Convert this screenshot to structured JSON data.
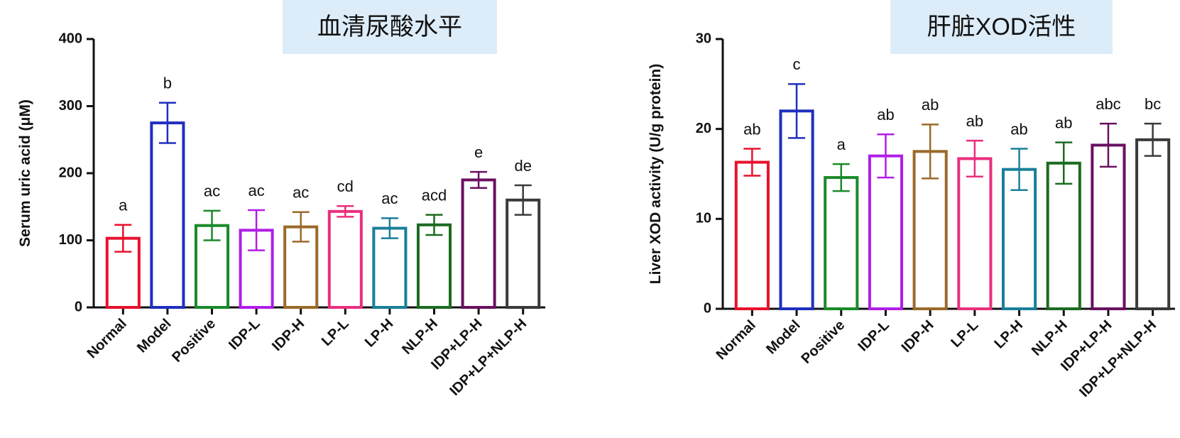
{
  "chart_data": [
    {
      "type": "bar",
      "title": "血清尿酸水平",
      "y_label": "Serum uric acid (μM)",
      "categories": [
        "Normal",
        "Model",
        "Positive",
        "IDP-L",
        "IDP-H",
        "LP-L",
        "LP-H",
        "NLP-H",
        "IDP+LP-H",
        "IDP+LP+NLP-H"
      ],
      "values": [
        103,
        275,
        122,
        115,
        120,
        143,
        118,
        123,
        190,
        160
      ],
      "errors": [
        20,
        30,
        22,
        30,
        22,
        8,
        15,
        15,
        12,
        22
      ],
      "value_labels": [
        "a",
        "b",
        "ac",
        "ac",
        "ac",
        "cd",
        "ac",
        "acd",
        "e",
        "de"
      ],
      "colors": [
        "#e8112d",
        "#1f2fbf",
        "#1a8a2a",
        "#b01ee8",
        "#9a6a2a",
        "#ea2f7e",
        "#1a7f99",
        "#1b6b1f",
        "#6a1060",
        "#3a3a3a"
      ],
      "ylim": [
        0,
        400
      ],
      "yticks": [
        0,
        100,
        200,
        300,
        400
      ]
    },
    {
      "type": "bar",
      "title": "肝脏XOD活性",
      "y_label": "Liver XOD activity (U/g protein)",
      "categories": [
        "Normal",
        "Model",
        "Positive",
        "IDP-L",
        "IDP-H",
        "LP-L",
        "LP-H",
        "NLP-H",
        "IDP+LP-H",
        "IDP+LP+NLP-H"
      ],
      "values": [
        16.3,
        22,
        14.6,
        17,
        17.5,
        16.7,
        15.5,
        16.2,
        18.2,
        18.8
      ],
      "errors": [
        1.5,
        3,
        1.5,
        2.4,
        3,
        2,
        2.3,
        2.3,
        2.4,
        1.8
      ],
      "value_labels": [
        "ab",
        "c",
        "a",
        "ab",
        "ab",
        "ab",
        "ab",
        "ab",
        "abc",
        "bc"
      ],
      "colors": [
        "#e8112d",
        "#1f2fbf",
        "#1a8a2a",
        "#b01ee8",
        "#9a6a2a",
        "#ea2f7e",
        "#1a7f99",
        "#1b6b1f",
        "#6a1060",
        "#3a3a3a"
      ],
      "ylim": [
        0,
        30
      ],
      "yticks": [
        0,
        10,
        20,
        30
      ]
    }
  ]
}
